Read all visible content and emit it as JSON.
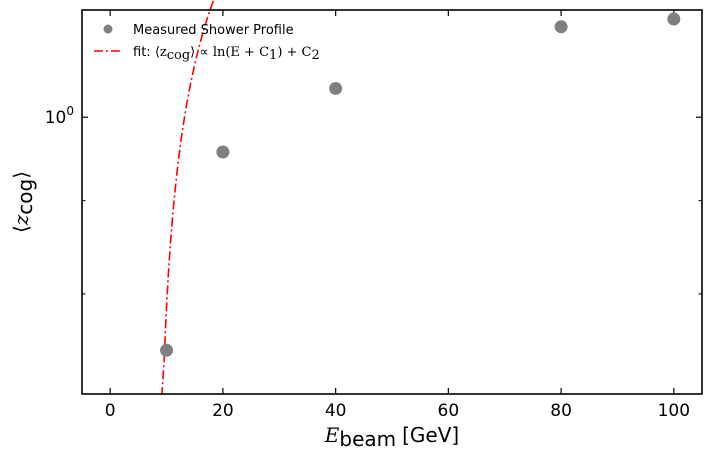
{
  "chart_data": {
    "type": "scatter",
    "title": "",
    "xlabel": {
      "symbol": "E",
      "subscript": "beam",
      "unit": "[GeV]"
    },
    "ylabel": {
      "symbol": "z",
      "subscript": "cog"
    },
    "xlim": [
      -5,
      105
    ],
    "ylim": [
      0.705,
      1.145
    ],
    "yscale": "log",
    "grid": false,
    "legend_position": "top-left",
    "x_ticks": [
      0,
      20,
      40,
      60,
      80,
      100
    ],
    "x_tick_labels": [
      "0",
      "20",
      "40",
      "60",
      "80",
      "100"
    ],
    "y_ticks": [
      1.0
    ],
    "y_tick_labels": [
      {
        "base": "10",
        "exponent": "0"
      }
    ],
    "series": [
      {
        "name": "Measured Shower Profile",
        "kind": "scatter",
        "color": "#808080",
        "x": [
          10,
          20,
          40,
          80,
          100
        ],
        "y": [
          0.745,
          0.957,
          1.037,
          1.121,
          1.132
        ]
      },
      {
        "name": "fit: ⟨z_cog⟩ ∝ ln(E + C1) + C2",
        "kind": "line",
        "style": "dash-dot",
        "color": "#ff0000",
        "model": {
          "a": 0.237,
          "c1": -7.8,
          "c2": 0.601
        },
        "x_range": [
          8.8,
          100
        ]
      }
    ],
    "legend": {
      "entry1": "Measured Shower Profile",
      "entry2": {
        "prefix": "fit:",
        "lhs": "⟨z",
        "lhs_sub": "cog",
        "lhs_close": "⟩",
        "rel": "∝",
        "body": "ln(E + C",
        "sub1": "1",
        "mid": ") + C",
        "sub2": "2"
      }
    }
  }
}
